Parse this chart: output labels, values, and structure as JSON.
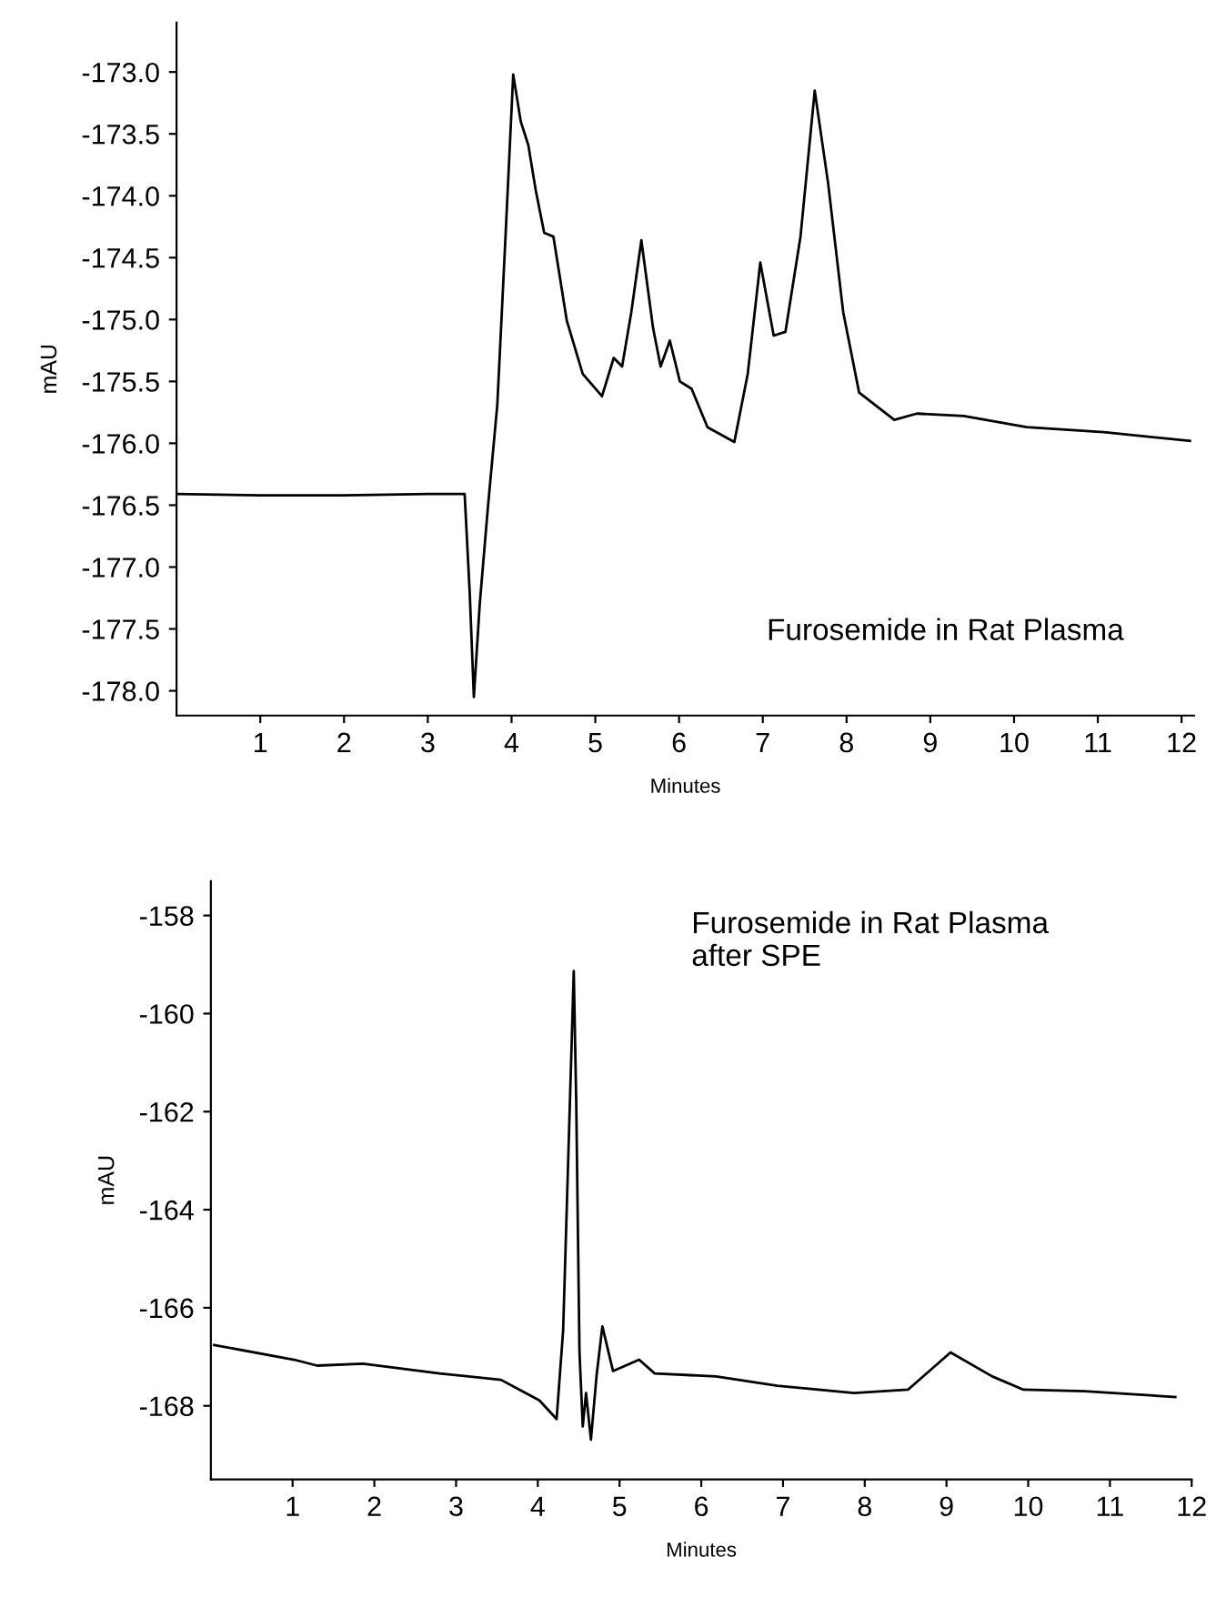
{
  "chart_data": [
    {
      "type": "line",
      "xlabel": "Minutes",
      "ylabel": "mAU",
      "annotations": [
        "Furosemide in Rat Plasma"
      ],
      "xlim": [
        0,
        12.15
      ],
      "ylim": [
        -178.2,
        -172.6
      ],
      "xticks": [
        1,
        2,
        3,
        4,
        5,
        6,
        7,
        8,
        9,
        10,
        11,
        12
      ],
      "yticks": [
        {
          "value": -178,
          "label": "-178.0"
        },
        -177.5,
        {
          "value": -177,
          "label": "-177.0"
        },
        -176.5,
        {
          "value": -176,
          "label": "-176.0"
        },
        -175.5,
        {
          "value": -175,
          "label": "-175.0"
        },
        -174.5,
        {
          "value": -174,
          "label": "-174.0"
        },
        -173.5,
        {
          "value": -173,
          "label": "-173.0"
        }
      ],
      "marker": "none",
      "line_style": "solid",
      "grid": false,
      "legend": false,
      "series": [
        {
          "color": "#000000",
          "x": [
            0,
            1,
            2,
            3,
            3.44,
            3.5,
            3.55,
            3.62,
            3.72,
            3.83,
            3.93,
            4.02,
            4.11,
            4.2,
            4.29,
            4.39,
            4.5,
            4.66,
            4.85,
            5.08,
            5.22,
            5.32,
            5.43,
            5.55,
            5.69,
            5.78,
            5.89,
            6.01,
            6.15,
            6.34,
            6.66,
            6.82,
            6.97,
            7.13,
            7.27,
            7.45,
            7.62,
            7.78,
            7.96,
            8.15,
            8.57,
            8.84,
            9.4,
            10.15,
            11.07,
            12.1
          ],
          "values": [
            -176.41,
            -176.42,
            -176.42,
            -176.41,
            -176.41,
            -177.2,
            -178.05,
            -177.3,
            -176.5,
            -175.69,
            -174.3,
            -173.02,
            -173.4,
            -173.59,
            -173.96,
            -174.3,
            -174.33,
            -175.01,
            -175.44,
            -175.62,
            -175.31,
            -175.38,
            -174.94,
            -174.36,
            -175.07,
            -175.38,
            -175.17,
            -175.5,
            -175.56,
            -175.87,
            -175.99,
            -175.44,
            -174.54,
            -175.13,
            -175.1,
            -174.33,
            -173.15,
            -173.9,
            -174.94,
            -175.59,
            -175.81,
            -175.76,
            -175.78,
            -175.87,
            -175.91,
            -175.98
          ]
        }
      ]
    },
    {
      "type": "line",
      "xlabel": "Minutes",
      "ylabel": "mAU",
      "annotations": [
        "Furosemide in Rat Plasma\nafter SPE"
      ],
      "xlim": [
        0,
        12
      ],
      "ylim": [
        -169.5,
        -157.3
      ],
      "xticks": [
        1,
        2,
        3,
        4,
        5,
        6,
        7,
        8,
        9,
        10,
        11,
        12
      ],
      "yticks": [
        -168,
        -166,
        -164,
        -162,
        -160,
        -158
      ],
      "marker": "none",
      "line_style": "solid",
      "grid": false,
      "legend": false,
      "series": [
        {
          "color": "#000000",
          "x": [
            0.04,
            1.02,
            1.3,
            1.86,
            2.8,
            3.55,
            4.02,
            4.23,
            4.31,
            4.38,
            4.44,
            4.47,
            4.51,
            4.55,
            4.59,
            4.65,
            4.72,
            4.79,
            4.92,
            5.24,
            5.43,
            6.18,
            6.93,
            7.87,
            8.53,
            9.05,
            9.56,
            9.94,
            10.69,
            11.8
          ],
          "values": [
            -166.76,
            -167.06,
            -167.18,
            -167.14,
            -167.34,
            -167.47,
            -167.89,
            -168.27,
            -166.46,
            -162.53,
            -159.13,
            -161.78,
            -166.91,
            -168.42,
            -167.74,
            -168.69,
            -167.37,
            -166.38,
            -167.29,
            -167.06,
            -167.34,
            -167.4,
            -167.59,
            -167.74,
            -167.67,
            -166.91,
            -167.4,
            -167.67,
            -167.7,
            -167.82
          ]
        }
      ]
    }
  ]
}
